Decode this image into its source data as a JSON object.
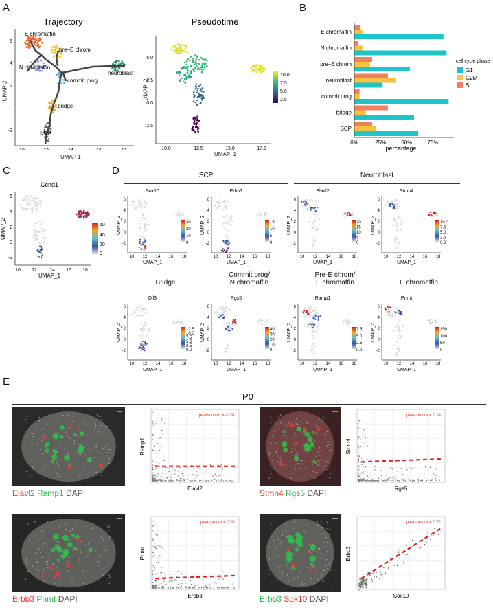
{
  "panels": {
    "A": "A",
    "B": "B",
    "C": "C",
    "D": "D",
    "E": "E"
  },
  "A": {
    "traj_title": "Trajectory",
    "traj_xlabel": "UMAP 1",
    "traj_ylabel": "UMAP 2",
    "traj_xticks": [
      "10",
      "12",
      "14",
      "16",
      "18"
    ],
    "traj_yticks": [
      "6",
      "4",
      "2",
      "0",
      "-2"
    ],
    "traj_labels": [
      "E chromaffin",
      "pre–E chrom",
      "N chromaffin",
      "neuroblast",
      "commit prog",
      "bridge",
      "SCP"
    ],
    "pt_title": "Pseudotime",
    "pt_xlabel": "UMAP_1",
    "pt_ylabel": "UMAP_2",
    "pt_xticks": [
      "10.0",
      "12.5",
      "15.0",
      "17.5"
    ],
    "pt_yticks": [
      "5.0",
      "2.5",
      "0.0",
      "-2.5"
    ],
    "pt_legend": [
      "10.0",
      "7.5",
      "5.0",
      "2.5"
    ]
  },
  "chart_data": {
    "type": "bar",
    "categories": [
      "E chromaffin",
      "N chromaffin",
      "pre–E chrom",
      "neuroblast",
      "commit prog",
      "bridge",
      "SCP"
    ],
    "series": [
      {
        "name": "G1",
        "values": [
          85,
          88,
          53,
          27,
          90,
          57,
          61
        ]
      },
      {
        "name": "G2M",
        "values": [
          8,
          8,
          15,
          40,
          5,
          11,
          21
        ]
      },
      {
        "name": "S",
        "values": [
          6,
          4,
          17,
          32,
          5,
          32,
          17
        ]
      }
    ],
    "xlabel": "percentage",
    "xticks": [
      "0%",
      "25%",
      "50%",
      "75%"
    ],
    "legend_title": "cell cycle phase",
    "xlim": [
      0,
      95
    ],
    "colors": {
      "G1": "#1dc4c9",
      "G2M": "#f5c242",
      "S": "#f08160"
    }
  },
  "C": {
    "gene": "Ccnd1",
    "xlabel": "UMAP_1",
    "ylabel": "UMAP_2",
    "xticks": [
      "10",
      "12",
      "14",
      "16",
      "18"
    ],
    "yticks": [
      "6",
      "4",
      "2",
      "0",
      "-2"
    ],
    "legend": [
      "60",
      "40",
      "20",
      "0"
    ]
  },
  "D": {
    "groups": [
      "SCP",
      "Neuroblast",
      "Bridge",
      "Commit prog/\nN chromaffin",
      "Pre-E chrom/\nE chromaffin",
      "E chromaffin"
    ],
    "genes": [
      "Sox10",
      "Erbb3",
      "Elavl2",
      "Stmn4",
      "Dll3",
      "Rgs5",
      "Ramp1",
      "Pnmt"
    ],
    "legends": [
      [
        "30",
        "20",
        "10",
        "0"
      ],
      [
        "15",
        "10",
        "5",
        "0"
      ],
      [
        "20",
        "15",
        "10",
        "5",
        "0"
      ],
      [
        "10.0",
        "7.5",
        "5.0",
        "2.5",
        "0.0"
      ],
      [
        "12.5",
        "10.0",
        "7.5",
        "5.0",
        "2.5",
        "0.0"
      ],
      [
        "40",
        "30",
        "20",
        "10",
        "0"
      ],
      [
        "7.5",
        "5.0",
        "2.5",
        "0.0"
      ],
      [
        "150",
        "100",
        "50",
        "0"
      ]
    ],
    "xlabel": "UMAP_1",
    "ylabel": "UMAP_2",
    "xticks": [
      "10",
      "12",
      "14",
      "16",
      "18"
    ],
    "yticks": [
      "6",
      "4",
      "2",
      "0",
      "-2"
    ]
  },
  "E": {
    "title": "P0",
    "caps": [
      [
        {
          "t": "Elavl2",
          "c": "r"
        },
        {
          "t": "Ramp1",
          "c": "g"
        },
        {
          "t": "DAPI",
          "c": "w"
        }
      ],
      [
        {
          "t": "Stmn4",
          "c": "r"
        },
        {
          "t": "Rgs5",
          "c": "g"
        },
        {
          "t": "DAPI",
          "c": "w"
        }
      ],
      [
        {
          "t": "Erbb3",
          "c": "r"
        },
        {
          "t": "Pnmt",
          "c": "g"
        },
        {
          "t": "DAPI",
          "c": "w"
        }
      ],
      [
        {
          "t": "Erbb3",
          "c": "g"
        },
        {
          "t": "Sox10",
          "c": "r"
        },
        {
          "t": "DAPI",
          "c": "w"
        }
      ]
    ],
    "scatters": [
      {
        "xlabel": "Elavl2",
        "ylabel": "Ramp1",
        "cor": "pearson cor = -0.01"
      },
      {
        "xlabel": "Rgs5",
        "ylabel": "Stmn4",
        "cor": "pearson cor = 0.14"
      },
      {
        "xlabel": "Erbb3",
        "ylabel": "Pnmt",
        "cor": "pearson cor = 0.02"
      },
      {
        "xlabel": "Sox10",
        "ylabel": "Erbb3",
        "cor": "pearson cor = 0.72"
      }
    ]
  }
}
